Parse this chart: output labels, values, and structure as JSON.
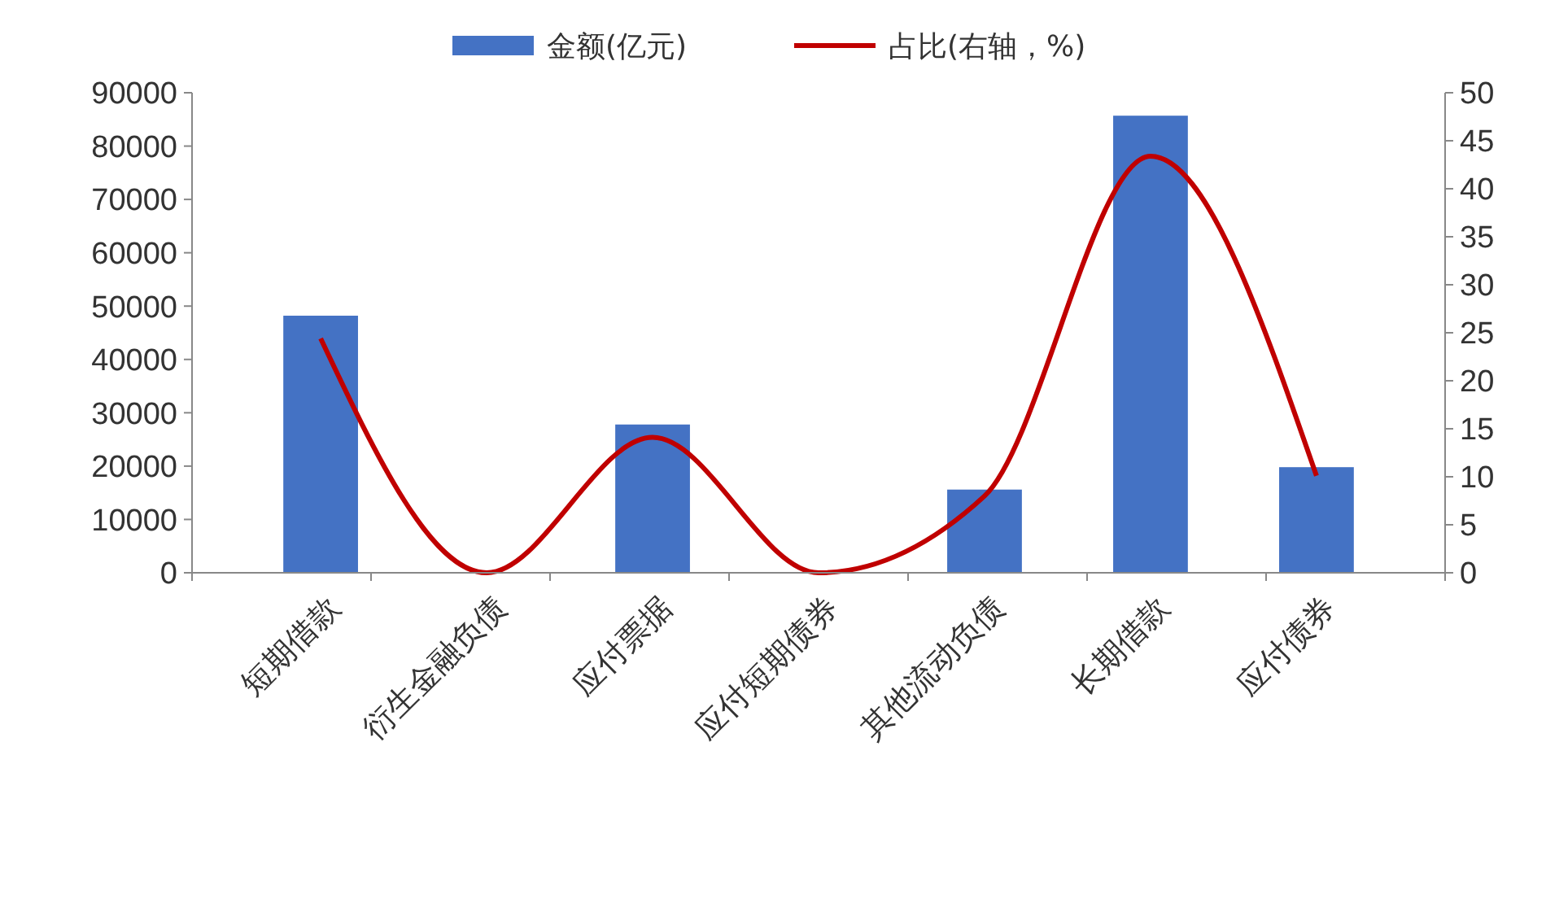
{
  "chart_data": {
    "type": "bar",
    "categories": [
      "短期借款",
      "衍生金融负债",
      "应付票据",
      "应付短期债券",
      "其他流动负债",
      "长期借款",
      "应付债券"
    ],
    "series": [
      {
        "name": "金额(亿元)",
        "color": "#4472c4",
        "values": [
          48200,
          0,
          27800,
          0,
          15600,
          85700,
          19800
        ]
      },
      {
        "name": "占比(右轴，%)",
        "type": "line",
        "axis": "y2",
        "color": "#c00000",
        "values": [
          24.4,
          0,
          14.1,
          0,
          8,
          43.4,
          10.1
        ]
      }
    ],
    "ylim": [
      0,
      90000
    ],
    "yticks": [
      0,
      10000,
      20000,
      30000,
      40000,
      50000,
      60000,
      70000,
      80000,
      90000
    ],
    "y2lim": [
      0,
      50
    ],
    "y2ticks": [
      0,
      5,
      10,
      15,
      20,
      25,
      30,
      35,
      40,
      45,
      50
    ],
    "legend": "top",
    "grid": false,
    "line_style": "solid"
  }
}
